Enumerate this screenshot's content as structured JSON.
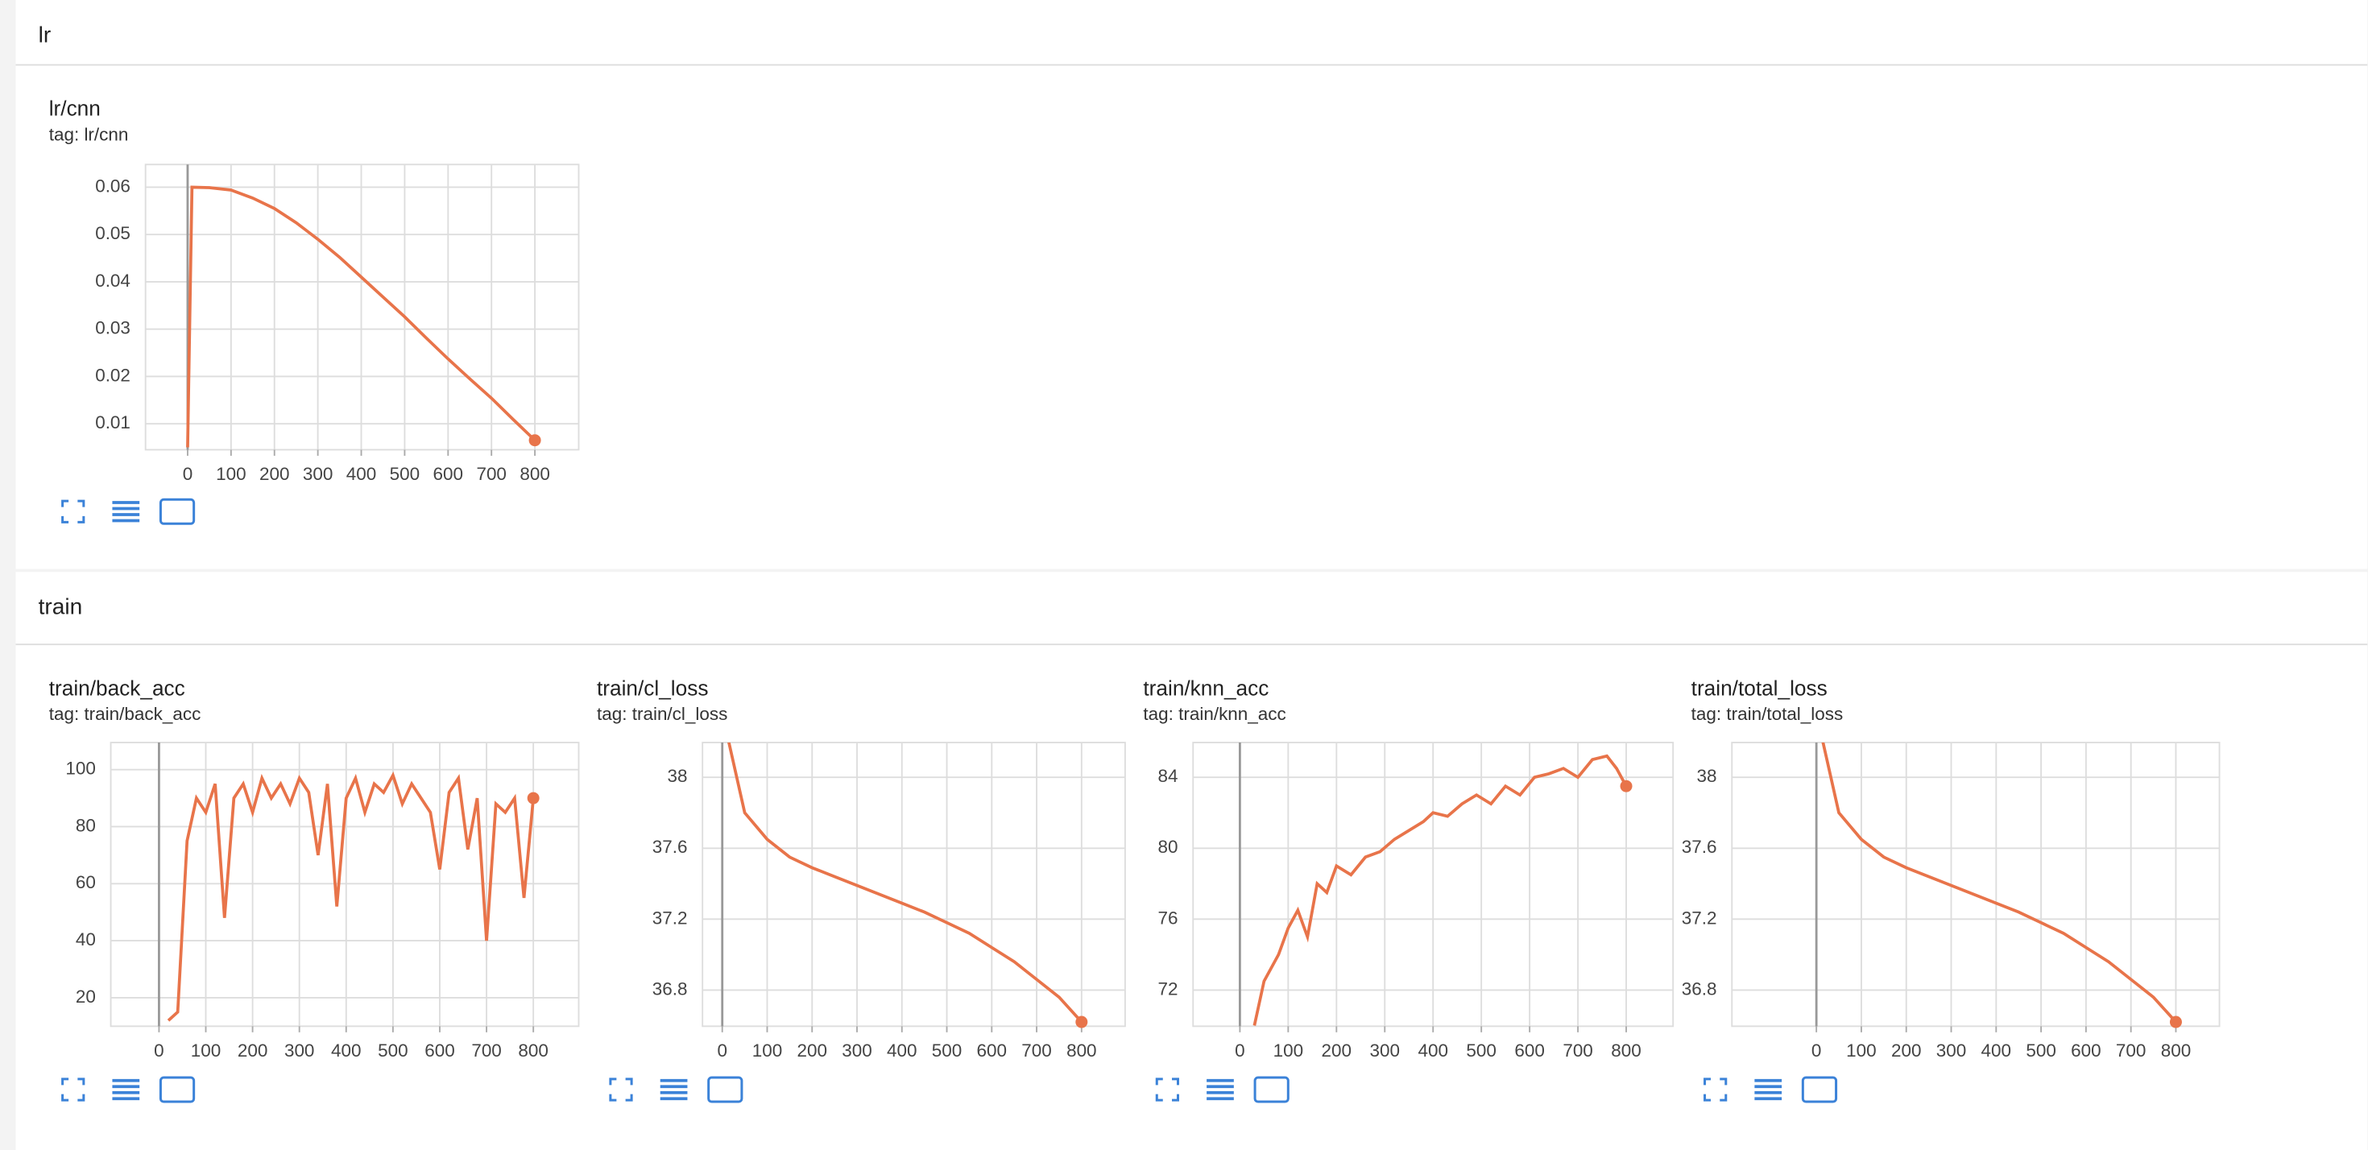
{
  "sections": [
    {
      "title": "lr"
    },
    {
      "title": "train"
    }
  ],
  "chart_data": [
    {
      "type": "line",
      "title": "lr/cnn",
      "subtitle": "tag: lr/cnn",
      "color": "#e8744a",
      "grid": true,
      "xlim": [
        -97,
        901
      ],
      "xticks": [
        0,
        100,
        200,
        300,
        400,
        500,
        600,
        700,
        800
      ],
      "ylim": [
        0.0045,
        0.0648
      ],
      "yticks": [
        0.01,
        0.02,
        0.03,
        0.04,
        0.05,
        0.06
      ],
      "x": [
        0,
        10,
        50,
        100,
        150,
        200,
        250,
        300,
        350,
        400,
        450,
        500,
        550,
        600,
        650,
        700,
        750,
        800
      ],
      "values": [
        0.005,
        0.06,
        0.0599,
        0.0594,
        0.0577,
        0.0555,
        0.0525,
        0.049,
        0.0452,
        0.041,
        0.0368,
        0.0326,
        0.0281,
        0.0237,
        0.0195,
        0.0154,
        0.0109,
        0.0065
      ]
    },
    {
      "type": "line",
      "title": "train/back_acc",
      "subtitle": "tag: train/back_acc",
      "color": "#e8744a",
      "grid": true,
      "xlim": [
        -103,
        897
      ],
      "xticks": [
        0,
        100,
        200,
        300,
        400,
        500,
        600,
        700,
        800
      ],
      "ylim": [
        10,
        109.5
      ],
      "yticks": [
        20,
        40,
        60,
        80,
        100
      ],
      "x": [
        20,
        40,
        60,
        80,
        100,
        120,
        140,
        160,
        180,
        200,
        220,
        240,
        260,
        280,
        300,
        320,
        340,
        360,
        380,
        400,
        420,
        440,
        460,
        480,
        500,
        520,
        540,
        560,
        580,
        600,
        620,
        640,
        660,
        680,
        700,
        720,
        740,
        760,
        780,
        800
      ],
      "values": [
        12,
        15,
        75,
        90,
        85,
        95,
        48,
        90,
        95,
        85,
        97,
        90,
        95,
        88,
        97,
        92,
        70,
        95,
        52,
        90,
        97,
        85,
        95,
        92,
        98,
        88,
        95,
        90,
        85,
        65,
        92,
        97,
        72,
        90,
        40,
        88,
        85,
        90,
        55,
        90
      ]
    },
    {
      "type": "line",
      "title": "train/cl_loss",
      "subtitle": "tag: train/cl_loss",
      "color": "#e8744a",
      "grid": true,
      "xlim": [
        -44,
        897
      ],
      "xticks": [
        0,
        100,
        200,
        300,
        400,
        500,
        600,
        700,
        800
      ],
      "ylim": [
        36.596,
        38.196
      ],
      "yticks": [
        36.8,
        37.2,
        37.6,
        38
      ],
      "x": [
        10,
        50,
        100,
        150,
        200,
        250,
        300,
        350,
        400,
        450,
        500,
        550,
        600,
        650,
        700,
        750,
        800
      ],
      "values": [
        38.25,
        37.8,
        37.65,
        37.55,
        37.49,
        37.44,
        37.39,
        37.34,
        37.29,
        37.24,
        37.18,
        37.12,
        37.04,
        36.96,
        36.86,
        36.76,
        36.62
      ]
    },
    {
      "type": "line",
      "title": "train/knn_acc",
      "subtitle": "tag: train/knn_acc",
      "color": "#e8744a",
      "grid": true,
      "xlim": [
        -97,
        897
      ],
      "xticks": [
        0,
        100,
        200,
        300,
        400,
        500,
        600,
        700,
        800
      ],
      "ylim": [
        69.96,
        85.96
      ],
      "yticks": [
        72,
        76,
        80,
        84
      ],
      "x": [
        30,
        50,
        80,
        100,
        120,
        140,
        160,
        180,
        200,
        230,
        260,
        290,
        320,
        350,
        380,
        400,
        430,
        460,
        490,
        520,
        550,
        580,
        610,
        640,
        670,
        700,
        730,
        760,
        780,
        800
      ],
      "values": [
        70,
        72.5,
        74,
        75.5,
        76.5,
        75,
        78,
        77.5,
        79,
        78.5,
        79.5,
        79.8,
        80.5,
        81,
        81.5,
        82,
        81.8,
        82.5,
        83,
        82.5,
        83.5,
        83,
        84,
        84.2,
        84.5,
        84,
        85,
        85.2,
        84.5,
        83.5
      ]
    },
    {
      "type": "line",
      "title": "train/total_loss",
      "subtitle": "tag: train/total_loss",
      "color": "#e8744a",
      "grid": true,
      "xlim": [
        -188,
        897
      ],
      "xticks": [
        0,
        100,
        200,
        300,
        400,
        500,
        600,
        700,
        800
      ],
      "ylim": [
        36.596,
        38.196
      ],
      "yticks": [
        36.8,
        37.2,
        37.6,
        38
      ],
      "x": [
        10,
        50,
        100,
        150,
        200,
        250,
        300,
        350,
        400,
        450,
        500,
        550,
        600,
        650,
        700,
        750,
        800
      ],
      "values": [
        38.25,
        37.8,
        37.65,
        37.55,
        37.49,
        37.44,
        37.39,
        37.34,
        37.29,
        37.24,
        37.18,
        37.12,
        37.04,
        36.96,
        36.86,
        36.76,
        36.62
      ]
    }
  ]
}
